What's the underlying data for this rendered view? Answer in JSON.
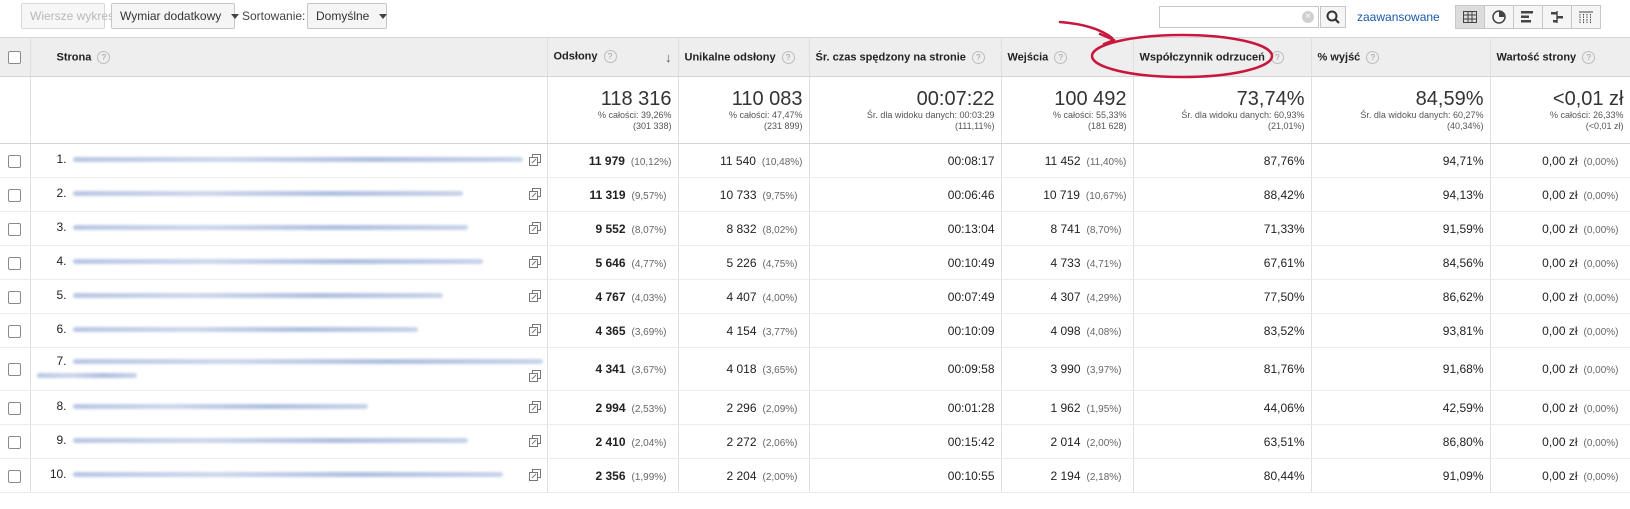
{
  "toolbar": {
    "chart_rows_label": "Wiersze wykresu",
    "secondary_dimension_label": "Wymiar dodatkowy",
    "sort_label": "Sortowanie:",
    "sort_value": "Domyślne",
    "search_value": "",
    "advanced_link": "zaawansowane"
  },
  "columns": {
    "page": "Strona",
    "pageviews": "Odsłony",
    "unique_pageviews": "Unikalne odsłony",
    "avg_time": "Śr. czas spędzony na stronie",
    "entrances": "Wejścia",
    "bounce_rate": "Współczynnik odrzuceń",
    "exit_pct": "% wyjść",
    "page_value": "Wartość strony"
  },
  "totals": {
    "pageviews": {
      "big": "118 316",
      "l1": "% całości: 39,26%",
      "l2": "(301 338)"
    },
    "unique_pageviews": {
      "big": "110 083",
      "l1": "% całości: 47,47%",
      "l2": "(231 899)"
    },
    "avg_time": {
      "big": "00:07:22",
      "l1": "Śr. dla widoku danych: 00:03:29",
      "l2": "(111,11%)"
    },
    "entrances": {
      "big": "100 492",
      "l1": "% całości: 55,33%",
      "l2": "(181 628)"
    },
    "bounce_rate": {
      "big": "73,74%",
      "l1": "Śr. dla widoku danych: 60,93%",
      "l2": "(21,01%)"
    },
    "exit_pct": {
      "big": "84,59%",
      "l1": "Śr. dla widoku danych: 60,27%",
      "l2": "(40,34%)"
    },
    "page_value": {
      "big": "<0,01 zł",
      "l1": "% całości: 26,33%",
      "l2": "(<0,01 zł)"
    }
  },
  "rows": [
    {
      "num": "1.",
      "pv": "11 979",
      "pv_pct": "(10,12%)",
      "upv": "11 540",
      "upv_pct": "(10,48%)",
      "time": "00:08:17",
      "ent": "11 452",
      "ent_pct": "(11,40%)",
      "bounce": "87,76%",
      "exit": "94,71%",
      "value": "0,00 zł",
      "value_pct": "(0,00%)"
    },
    {
      "num": "2.",
      "pv": "11 319",
      "pv_pct": "(9,57%)",
      "upv": "10 733",
      "upv_pct": "(9,75%)",
      "time": "00:06:46",
      "ent": "10 719",
      "ent_pct": "(10,67%)",
      "bounce": "88,42%",
      "exit": "94,13%",
      "value": "0,00 zł",
      "value_pct": "(0,00%)"
    },
    {
      "num": "3.",
      "pv": "9 552",
      "pv_pct": "(8,07%)",
      "upv": "8 832",
      "upv_pct": "(8,02%)",
      "time": "00:13:04",
      "ent": "8 741",
      "ent_pct": "(8,70%)",
      "bounce": "71,33%",
      "exit": "91,59%",
      "value": "0,00 zł",
      "value_pct": "(0,00%)"
    },
    {
      "num": "4.",
      "pv": "5 646",
      "pv_pct": "(4,77%)",
      "upv": "5 226",
      "upv_pct": "(4,75%)",
      "time": "00:10:49",
      "ent": "4 733",
      "ent_pct": "(4,71%)",
      "bounce": "67,61%",
      "exit": "84,56%",
      "value": "0,00 zł",
      "value_pct": "(0,00%)"
    },
    {
      "num": "5.",
      "pv": "4 767",
      "pv_pct": "(4,03%)",
      "upv": "4 407",
      "upv_pct": "(4,00%)",
      "time": "00:07:49",
      "ent": "4 307",
      "ent_pct": "(4,29%)",
      "bounce": "77,50%",
      "exit": "86,62%",
      "value": "0,00 zł",
      "value_pct": "(0,00%)"
    },
    {
      "num": "6.",
      "pv": "4 365",
      "pv_pct": "(3,69%)",
      "upv": "4 154",
      "upv_pct": "(3,77%)",
      "time": "00:10:09",
      "ent": "4 098",
      "ent_pct": "(4,08%)",
      "bounce": "83,52%",
      "exit": "93,81%",
      "value": "0,00 zł",
      "value_pct": "(0,00%)"
    },
    {
      "num": "7.",
      "pv": "4 341",
      "pv_pct": "(3,67%)",
      "upv": "4 018",
      "upv_pct": "(3,65%)",
      "time": "00:09:58",
      "ent": "3 990",
      "ent_pct": "(3,97%)",
      "bounce": "81,76%",
      "exit": "91,68%",
      "value": "0,00 zł",
      "value_pct": "(0,00%)"
    },
    {
      "num": "8.",
      "pv": "2 994",
      "pv_pct": "(2,53%)",
      "upv": "2 296",
      "upv_pct": "(2,09%)",
      "time": "00:01:28",
      "ent": "1 962",
      "ent_pct": "(1,95%)",
      "bounce": "44,06%",
      "exit": "42,59%",
      "value": "0,00 zł",
      "value_pct": "(0,00%)"
    },
    {
      "num": "9.",
      "pv": "2 410",
      "pv_pct": "(2,04%)",
      "upv": "2 272",
      "upv_pct": "(2,06%)",
      "time": "00:15:42",
      "ent": "2 014",
      "ent_pct": "(2,00%)",
      "bounce": "63,51%",
      "exit": "86,80%",
      "value": "0,00 zł",
      "value_pct": "(0,00%)"
    },
    {
      "num": "10.",
      "pv": "2 356",
      "pv_pct": "(1,99%)",
      "upv": "2 204",
      "upv_pct": "(2,00%)",
      "time": "00:10:55",
      "ent": "2 194",
      "ent_pct": "(2,18%)",
      "bounce": "80,44%",
      "exit": "91,09%",
      "value": "0,00 zł",
      "value_pct": "(0,00%)"
    }
  ],
  "icons": {
    "search": "search-icon",
    "views": [
      "table-view-icon",
      "pie-view-icon",
      "bar-view-icon",
      "comparison-view-icon",
      "pivot-view-icon"
    ],
    "external": "open-external-icon"
  },
  "colors": {
    "annotation": "#c8173d",
    "link": "#1a5aa8",
    "header_bg": "#eeeeee"
  }
}
